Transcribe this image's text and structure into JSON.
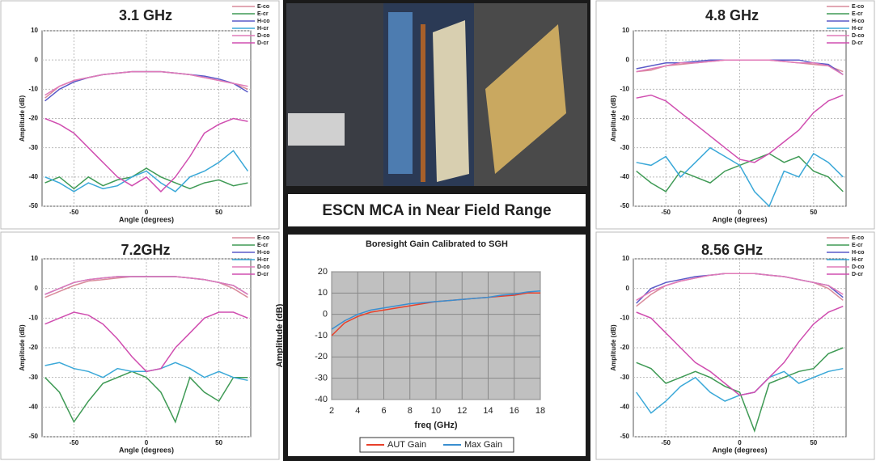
{
  "banner": "ESCN MCA in Near Field Range",
  "chart_data": [
    {
      "type": "line",
      "title": "3.1 GHz",
      "xlabel": "Angle (degrees)",
      "ylabel": "Amplitude (dB)",
      "x": [
        -70,
        -60,
        -50,
        -40,
        -30,
        -20,
        -10,
        0,
        10,
        20,
        30,
        40,
        50,
        60,
        70
      ],
      "xlim": [
        -72,
        72
      ],
      "xticks": [
        -50,
        0,
        50
      ],
      "ylim": [
        -50,
        10
      ],
      "yticks": [
        -50,
        -40,
        -30,
        -20,
        -10,
        0,
        10
      ],
      "grid": true,
      "legend": "upper right",
      "series": [
        {
          "name": "E-co",
          "color": "#d98a9a",
          "values": [
            -13,
            -9,
            -7,
            -6,
            -5,
            -4.5,
            -4,
            -4,
            -4,
            -4.5,
            -5,
            -6,
            -7,
            -8,
            -10
          ]
        },
        {
          "name": "E-cr",
          "color": "#3f9a55",
          "values": [
            -42,
            -40,
            -44,
            -40,
            -43,
            -41,
            -40,
            -37,
            -40,
            -42,
            -44,
            -42,
            -41,
            -43,
            -42
          ]
        },
        {
          "name": "H-co",
          "color": "#5a5ac8",
          "values": [
            -14,
            -10,
            -7.5,
            -6,
            -5,
            -4.5,
            -4,
            -4,
            -4,
            -4.5,
            -5,
            -5.5,
            -6.5,
            -8,
            -11
          ]
        },
        {
          "name": "H-cr",
          "color": "#3aa8d8",
          "values": [
            -40,
            -42,
            -45,
            -42,
            -44,
            -43,
            -40,
            -38,
            -42,
            -45,
            -40,
            -38,
            -35,
            -31,
            -38
          ]
        },
        {
          "name": "D-co",
          "color": "#e07ab8",
          "values": [
            -12,
            -9,
            -7,
            -6,
            -5,
            -4.5,
            -4,
            -4,
            -4,
            -4.5,
            -5,
            -6,
            -7,
            -8,
            -9
          ]
        },
        {
          "name": "D-cr",
          "color": "#d04eb0",
          "values": [
            -20,
            -22,
            -25,
            -30,
            -35,
            -40,
            -43,
            -40,
            -45,
            -40,
            -33,
            -25,
            -22,
            -20,
            -21
          ]
        }
      ]
    },
    {
      "type": "line",
      "title": "4.8 GHz",
      "xlabel": "Angle (degrees)",
      "ylabel": "Amplitude (dB)",
      "x": [
        -70,
        -60,
        -50,
        -40,
        -30,
        -20,
        -10,
        0,
        10,
        20,
        30,
        40,
        50,
        60,
        70
      ],
      "xlim": [
        -72,
        72
      ],
      "xticks": [
        -50,
        0,
        50
      ],
      "ylim": [
        -50,
        10
      ],
      "yticks": [
        -50,
        -40,
        -30,
        -20,
        -10,
        0,
        10
      ],
      "grid": true,
      "legend": "upper right",
      "series": [
        {
          "name": "E-co",
          "color": "#d98a9a",
          "values": [
            -4,
            -3.5,
            -2,
            -1.5,
            -1,
            -0.5,
            0,
            0,
            0,
            0,
            -0.5,
            -1,
            -1.5,
            -2,
            -4
          ]
        },
        {
          "name": "E-cr",
          "color": "#3f9a55",
          "values": [
            -38,
            -42,
            -45,
            -38,
            -40,
            -42,
            -38,
            -36,
            -34,
            -32,
            -35,
            -33,
            -38,
            -40,
            -45
          ]
        },
        {
          "name": "H-co",
          "color": "#5a5ac8",
          "values": [
            -3,
            -2,
            -1,
            -1,
            -0.5,
            0,
            0,
            0,
            0,
            0,
            0,
            0,
            -1,
            -1.5,
            -5
          ]
        },
        {
          "name": "H-cr",
          "color": "#3aa8d8",
          "values": [
            -35,
            -36,
            -33,
            -40,
            -35,
            -30,
            -33,
            -36,
            -45,
            -50,
            -38,
            -40,
            -32,
            -35,
            -40
          ]
        },
        {
          "name": "D-co",
          "color": "#e07ab8",
          "values": [
            -4,
            -3,
            -2,
            -1,
            -1,
            -0.5,
            0,
            0,
            0,
            0,
            -0.5,
            -1,
            -1,
            -2,
            -5
          ]
        },
        {
          "name": "D-cr",
          "color": "#d04eb0",
          "values": [
            -13,
            -12,
            -14,
            -18,
            -22,
            -26,
            -30,
            -34,
            -35,
            -32,
            -28,
            -24,
            -18,
            -14,
            -12
          ]
        }
      ]
    },
    {
      "type": "line",
      "title": "7.2GHz",
      "xlabel": "Angle (degrees)",
      "ylabel": "Amplitude (dB)",
      "x": [
        -70,
        -60,
        -50,
        -40,
        -30,
        -20,
        -10,
        0,
        10,
        20,
        30,
        40,
        50,
        60,
        70
      ],
      "xlim": [
        -72,
        72
      ],
      "xticks": [
        -50,
        0,
        50
      ],
      "ylim": [
        -50,
        10
      ],
      "yticks": [
        -50,
        -40,
        -30,
        -20,
        -10,
        0,
        10
      ],
      "grid": true,
      "legend": "upper right",
      "series": [
        {
          "name": "E-co",
          "color": "#d98a9a",
          "values": [
            -3,
            -1,
            1,
            2.5,
            3,
            3.5,
            4,
            4,
            4,
            4,
            3.5,
            3,
            2,
            0,
            -3
          ]
        },
        {
          "name": "E-cr",
          "color": "#3f9a55",
          "values": [
            -30,
            -35,
            -45,
            -38,
            -32,
            -30,
            -28,
            -30,
            -35,
            -45,
            -30,
            -35,
            -38,
            -30,
            -30
          ]
        },
        {
          "name": "H-co",
          "color": "#5a5ac8",
          "values": [
            -2,
            0,
            2,
            3,
            3.5,
            4,
            4,
            4,
            4,
            4,
            3.5,
            3,
            2,
            1,
            -2
          ]
        },
        {
          "name": "H-cr",
          "color": "#3aa8d8",
          "values": [
            -26,
            -25,
            -27,
            -28,
            -30,
            -27,
            -28,
            -28,
            -27,
            -25,
            -27,
            -30,
            -28,
            -30,
            -31
          ]
        },
        {
          "name": "D-co",
          "color": "#e07ab8",
          "values": [
            -2,
            0,
            2,
            3,
            3.5,
            4,
            4,
            4,
            4,
            4,
            3.5,
            3,
            2,
            1,
            -2
          ]
        },
        {
          "name": "D-cr",
          "color": "#d04eb0",
          "values": [
            -12,
            -10,
            -8,
            -9,
            -12,
            -17,
            -23,
            -28,
            -27,
            -20,
            -15,
            -10,
            -8,
            -8,
            -10
          ]
        }
      ]
    },
    {
      "type": "line",
      "title": "8.56 GHz",
      "xlabel": "Angle (degrees)",
      "ylabel": "Amplitude (dB)",
      "x": [
        -70,
        -60,
        -50,
        -40,
        -30,
        -20,
        -10,
        0,
        10,
        20,
        30,
        40,
        50,
        60,
        70
      ],
      "xlim": [
        -72,
        72
      ],
      "xticks": [
        -50,
        0,
        50
      ],
      "ylim": [
        -50,
        10
      ],
      "yticks": [
        -50,
        -40,
        -30,
        -20,
        -10,
        0,
        10
      ],
      "grid": true,
      "legend": "upper right",
      "series": [
        {
          "name": "E-co",
          "color": "#d98a9a",
          "values": [
            -6,
            -2,
            1,
            2.5,
            3.5,
            4.5,
            5,
            5,
            5,
            4.5,
            4,
            3,
            2,
            0,
            -4
          ]
        },
        {
          "name": "E-cr",
          "color": "#3f9a55",
          "values": [
            -25,
            -27,
            -32,
            -30,
            -28,
            -30,
            -33,
            -35,
            -48,
            -32,
            -30,
            -28,
            -27,
            -22,
            -20
          ]
        },
        {
          "name": "H-co",
          "color": "#5a5ac8",
          "values": [
            -5,
            0,
            2,
            3,
            4,
            4.5,
            5,
            5,
            5,
            4.5,
            4,
            3,
            2,
            1,
            -3
          ]
        },
        {
          "name": "H-cr",
          "color": "#3aa8d8",
          "values": [
            -35,
            -42,
            -38,
            -33,
            -30,
            -35,
            -38,
            -36,
            -35,
            -30,
            -28,
            -32,
            -30,
            -28,
            -27
          ]
        },
        {
          "name": "D-co",
          "color": "#e07ab8",
          "values": [
            -4,
            -1,
            1,
            2.5,
            3.5,
            4.5,
            5,
            5,
            5,
            4.5,
            4,
            3,
            2,
            1,
            -2
          ]
        },
        {
          "name": "D-cr",
          "color": "#d04eb0",
          "values": [
            -8,
            -10,
            -15,
            -20,
            -25,
            -28,
            -32,
            -36,
            -35,
            -30,
            -25,
            -18,
            -12,
            -8,
            -6
          ]
        }
      ]
    },
    {
      "type": "line",
      "title": "Boresight Gain Calibrated to SGH",
      "xlabel": "freq (GHz)",
      "ylabel": "Amplitude (dB)",
      "x": [
        2,
        3,
        4,
        5,
        6,
        7,
        8,
        9,
        10,
        11,
        12,
        13,
        14,
        15,
        16,
        17,
        18
      ],
      "xlim": [
        2,
        18
      ],
      "xticks": [
        2,
        4,
        6,
        8,
        10,
        12,
        14,
        16,
        18
      ],
      "ylim": [
        -40,
        20
      ],
      "yticks": [
        -40,
        -30,
        -20,
        -10,
        0,
        10,
        20
      ],
      "grid": true,
      "legend": "lower center",
      "plot_background": "#c0c0c0",
      "series": [
        {
          "name": "AUT Gain",
          "color": "#e8402a",
          "values": [
            -10,
            -4,
            -1,
            1,
            2,
            3,
            4,
            5,
            6,
            6.5,
            7,
            7.5,
            8,
            8.5,
            9,
            10,
            10
          ]
        },
        {
          "name": "Max Gain",
          "color": "#3a8fd0",
          "values": [
            -7,
            -3,
            0,
            2,
            3,
            4,
            5,
            5.5,
            6,
            6.5,
            7,
            7.5,
            8,
            9,
            9.5,
            10.5,
            11
          ]
        }
      ]
    }
  ]
}
